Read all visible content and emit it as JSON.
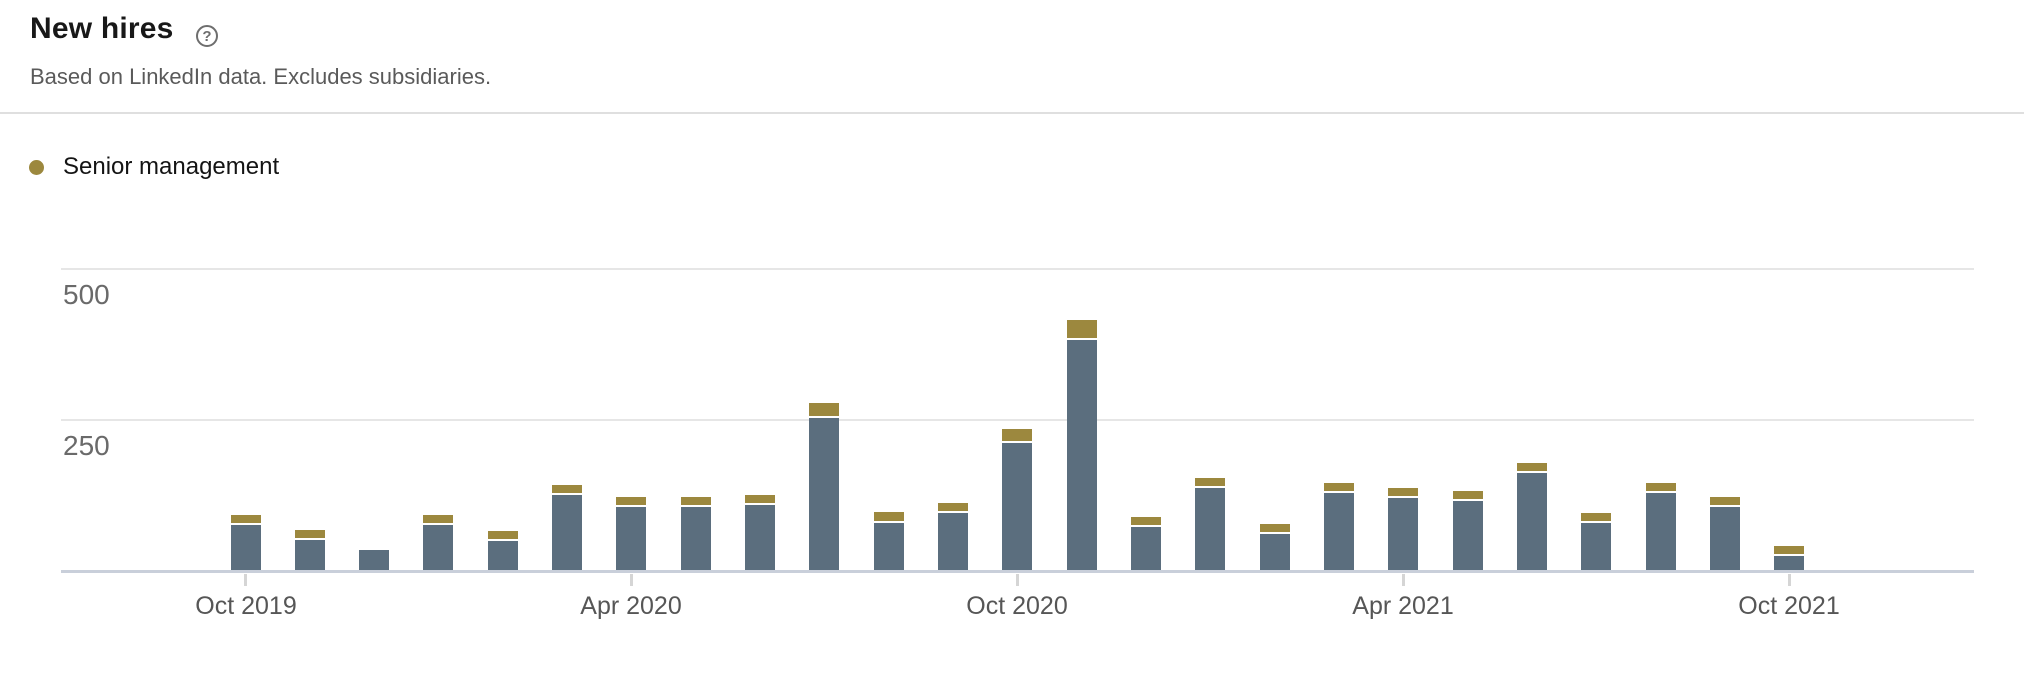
{
  "header": {
    "title": "New hires",
    "subtitle": "Based on LinkedIn data. Excludes subsidiaries.",
    "help_icon": {
      "name": "help-circle-icon",
      "glyph": "?"
    }
  },
  "legend": {
    "items": [
      {
        "label": "Senior management",
        "color": "#9c883e"
      }
    ]
  },
  "colors": {
    "senior_management": "#9c883e",
    "other_hires": "#5b6e7e",
    "axis_baseline": "#c9cfda",
    "gridline": "#e6e6e6"
  },
  "chart_data": {
    "type": "bar",
    "stacked": true,
    "title": "New hires",
    "xlabel": "",
    "ylabel": "",
    "ylim": [
      0,
      560
    ],
    "grid": true,
    "y_ticks": [
      {
        "value": 500,
        "label": "500"
      },
      {
        "value": 250,
        "label": "250"
      }
    ],
    "x_tick_labels": [
      {
        "bar_index": 0,
        "label": "Oct 2019"
      },
      {
        "bar_index": 6,
        "label": "Apr 2020"
      },
      {
        "bar_index": 12,
        "label": "Oct 2020"
      },
      {
        "bar_index": 18,
        "label": "Apr 2021"
      },
      {
        "bar_index": 24,
        "label": "Oct 2021"
      }
    ],
    "categories": [
      "Oct 2019",
      "Nov 2019",
      "Dec 2019",
      "Jan 2020",
      "Feb 2020",
      "Mar 2020",
      "Apr 2020",
      "May 2020",
      "Jun 2020",
      "Jul 2020",
      "Aug 2020",
      "Sep 2020",
      "Oct 2020",
      "Nov 2020",
      "Dec 2020",
      "Jan 2021",
      "Feb 2021",
      "Mar 2021",
      "Apr 2021",
      "May 2021",
      "Jun 2021",
      "Jul 2021",
      "Aug 2021",
      "Sep 2021",
      "Oct 2021"
    ],
    "series": [
      {
        "name": "Senior management",
        "color": "#9c883e",
        "values": [
          13,
          13,
          0,
          14,
          13,
          13,
          14,
          14,
          14,
          21,
          15,
          14,
          20,
          30,
          14,
          14,
          13,
          14,
          14,
          14,
          14,
          14,
          14,
          13,
          13
        ]
      },
      {
        "name": "Other hires (unlabeled series)",
        "color": "#5b6e7e",
        "values": [
          78,
          53,
          33,
          77,
          52,
          128,
          108,
          108,
          111,
          254,
          81,
          98,
          214,
          383,
          75,
          139,
          62,
          131,
          122,
          118,
          164,
          81,
          131,
          108,
          26
        ]
      }
    ],
    "totals": [
      91,
      66,
      33,
      91,
      65,
      141,
      122,
      122,
      125,
      275,
      96,
      112,
      234,
      413,
      89,
      153,
      75,
      145,
      136,
      132,
      178,
      95,
      145,
      121,
      39
    ]
  }
}
